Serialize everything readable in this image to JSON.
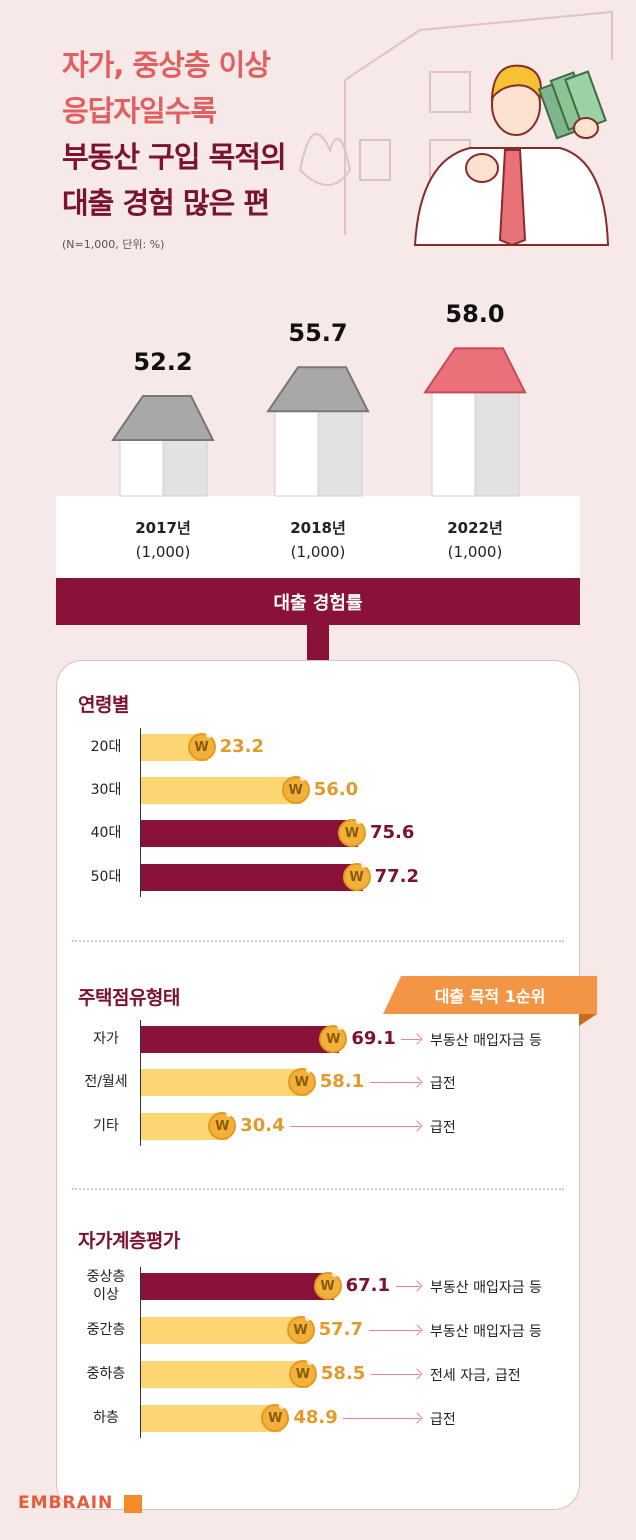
{
  "title": {
    "line1": "자가, 중상층 이상",
    "line2": "응답자일수록",
    "line3": "부동산 구입 목적의",
    "line4": "대출 경험 많은 편"
  },
  "note": "(N=1,000, 단위: %)",
  "rate_label": "대출 경험률",
  "purpose_badge": "대출 목적 1순위",
  "brand": "EMBRAIN",
  "coin_symbol": "W",
  "colors": {
    "dark_bar": "#8a1238",
    "light_bar": "#fdd673",
    "dark_text": "#7a1230",
    "light_text": "#e39a2a",
    "title_red": "#e35f5f",
    "roof_gray": "#a8a8a8",
    "roof_red": "#e9727a"
  },
  "chart_data": [
    {
      "type": "bar",
      "categories": [
        "2017년",
        "2018년",
        "2022년"
      ],
      "sample": [
        "(1,000)",
        "(1,000)",
        "(1,000)"
      ],
      "values": [
        52.2,
        55.7,
        58.0
      ],
      "value_labels": [
        "52.2",
        "55.7",
        "58.0"
      ],
      "highlight": [
        false,
        false,
        true
      ]
    },
    {
      "type": "bar",
      "title": "연령별",
      "categories": [
        "20대",
        "30대",
        "40대",
        "50대"
      ],
      "values": [
        23.2,
        56.0,
        75.6,
        77.2
      ],
      "value_labels": [
        "23.2",
        "56.0",
        "75.6",
        "77.2"
      ],
      "highlight": [
        false,
        false,
        true,
        true
      ],
      "xlim": [
        0,
        100
      ]
    },
    {
      "type": "bar",
      "title": "주택점유형태",
      "categories": [
        "자가",
        "전/월세",
        "기타"
      ],
      "values": [
        69.1,
        58.1,
        30.4
      ],
      "value_labels": [
        "69.1",
        "58.1",
        "30.4"
      ],
      "highlight": [
        true,
        false,
        false
      ],
      "purposes": [
        "부동산 매입자금 등",
        "급전",
        "급전"
      ],
      "xlim": [
        0,
        100
      ]
    },
    {
      "type": "bar",
      "title": "자가계층평가",
      "categories": [
        "중상층\n이상",
        "중간층",
        "중하층",
        "하층"
      ],
      "values": [
        67.1,
        57.7,
        58.5,
        48.9
      ],
      "value_labels": [
        "67.1",
        "57.7",
        "58.5",
        "48.9"
      ],
      "highlight": [
        true,
        false,
        false,
        false
      ],
      "purposes": [
        "부동산 매입자금 등",
        "부동산 매입자금 등",
        "전세 자금, 급전",
        "급전"
      ],
      "xlim": [
        0,
        100
      ]
    }
  ]
}
